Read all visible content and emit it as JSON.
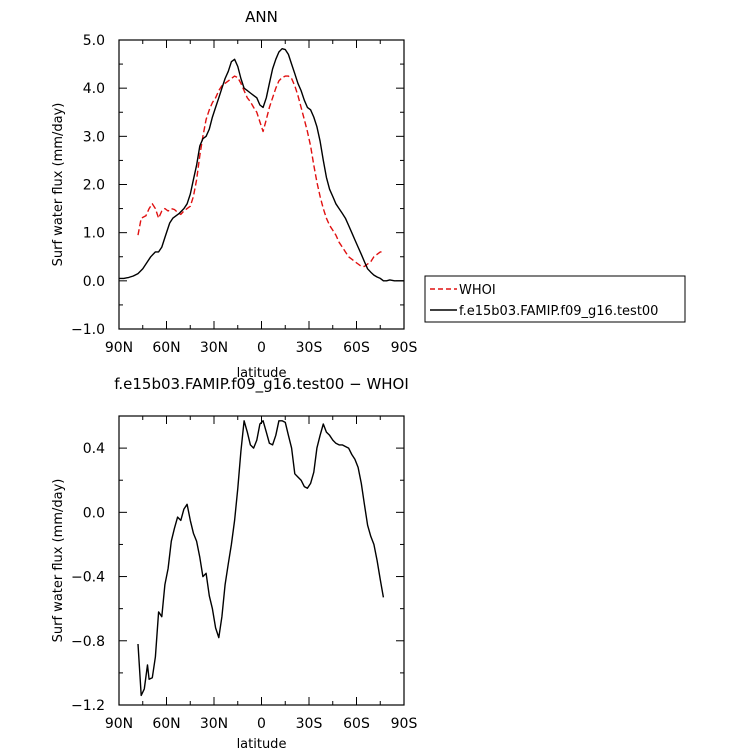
{
  "chart_data": [
    {
      "type": "line",
      "title": "ANN",
      "xlabel": "latitude",
      "ylabel": "Surf water flux (mm/day)",
      "xlim": [
        90,
        -90
      ],
      "ylim": [
        -1.0,
        5.0
      ],
      "x_ticks": [
        {
          "value": 90,
          "label": "90N"
        },
        {
          "value": 60,
          "label": "60N"
        },
        {
          "value": 30,
          "label": "30N"
        },
        {
          "value": 0,
          "label": "0"
        },
        {
          "value": -30,
          "label": "30S"
        },
        {
          "value": -60,
          "label": "60S"
        },
        {
          "value": -90,
          "label": "90S"
        }
      ],
      "y_ticks": [
        {
          "value": -1.0,
          "label": "−1.0"
        },
        {
          "value": 0.0,
          "label": "0.0"
        },
        {
          "value": 1.0,
          "label": "1.0"
        },
        {
          "value": 2.0,
          "label": "2.0"
        },
        {
          "value": 3.0,
          "label": "3.0"
        },
        {
          "value": 4.0,
          "label": "4.0"
        },
        {
          "value": 5.0,
          "label": "5.0"
        }
      ],
      "grid": false,
      "legend_placement": "right",
      "series": [
        {
          "name": "WHOI",
          "color": "#e01010",
          "dash": "dashed",
          "x": [
            78,
            76,
            73,
            71,
            69,
            67,
            65,
            63,
            61,
            59,
            57,
            55,
            53,
            51,
            49,
            47,
            45,
            43,
            41,
            39,
            37,
            35,
            33,
            31,
            29,
            27,
            25,
            23,
            21,
            19,
            17,
            15,
            13,
            11,
            9,
            7,
            5,
            3,
            1,
            -1,
            -3,
            -5,
            -7,
            -9,
            -11,
            -13,
            -15,
            -17,
            -19,
            -21,
            -23,
            -25,
            -27,
            -29,
            -31,
            -33,
            -35,
            -37,
            -39,
            -41,
            -43,
            -45,
            -47,
            -49,
            -51,
            -53,
            -55,
            -57,
            -59,
            -61,
            -63,
            -65,
            -67,
            -69,
            -71,
            -73,
            -75,
            -77
          ],
          "y": [
            0.95,
            1.3,
            1.35,
            1.5,
            1.6,
            1.5,
            1.3,
            1.45,
            1.5,
            1.45,
            1.5,
            1.48,
            1.42,
            1.38,
            1.45,
            1.5,
            1.55,
            1.75,
            2.1,
            2.6,
            3.0,
            3.35,
            3.55,
            3.7,
            3.8,
            3.95,
            4.05,
            4.1,
            4.15,
            4.2,
            4.25,
            4.22,
            4.1,
            3.95,
            3.8,
            3.72,
            3.6,
            3.5,
            3.3,
            3.1,
            3.35,
            3.6,
            3.8,
            4.0,
            4.15,
            4.22,
            4.25,
            4.25,
            4.2,
            4.05,
            3.85,
            3.6,
            3.35,
            3.1,
            2.8,
            2.4,
            2.05,
            1.75,
            1.5,
            1.3,
            1.15,
            1.05,
            0.95,
            0.8,
            0.7,
            0.6,
            0.5,
            0.45,
            0.4,
            0.35,
            0.3,
            0.3,
            0.35,
            0.4,
            0.5,
            0.55,
            0.6,
            0.6
          ]
        },
        {
          "name": "f.e15b03.FAMIP.f09_g16.test00",
          "color": "#000000",
          "dash": "solid",
          "x": [
            90,
            87,
            84,
            81,
            78,
            75,
            72,
            70,
            67,
            65,
            63,
            61,
            58,
            56,
            54,
            52,
            49,
            47,
            45,
            43,
            41,
            39,
            37,
            35,
            33,
            31,
            29,
            27,
            25,
            23,
            21,
            19,
            17,
            15,
            13,
            11,
            9,
            7,
            5,
            3,
            1,
            -1,
            -3,
            -5,
            -7,
            -9,
            -11,
            -13,
            -15,
            -17,
            -19,
            -21,
            -23,
            -25,
            -27,
            -29,
            -31,
            -33,
            -35,
            -37,
            -39,
            -41,
            -43,
            -45,
            -47,
            -49,
            -51,
            -53,
            -55,
            -57,
            -59,
            -61,
            -63,
            -65,
            -67,
            -69,
            -71,
            -73,
            -75,
            -77,
            -79,
            -81,
            -84,
            -87,
            -90
          ],
          "y": [
            0.05,
            0.05,
            0.07,
            0.1,
            0.15,
            0.25,
            0.4,
            0.5,
            0.6,
            0.6,
            0.7,
            0.9,
            1.2,
            1.3,
            1.35,
            1.4,
            1.5,
            1.6,
            1.8,
            2.1,
            2.4,
            2.8,
            2.95,
            3.0,
            3.15,
            3.4,
            3.6,
            3.8,
            4.0,
            4.2,
            4.35,
            4.55,
            4.6,
            4.45,
            4.2,
            4.0,
            3.95,
            3.9,
            3.85,
            3.8,
            3.65,
            3.6,
            3.8,
            4.1,
            4.4,
            4.6,
            4.75,
            4.82,
            4.8,
            4.7,
            4.5,
            4.3,
            4.1,
            3.95,
            3.75,
            3.6,
            3.55,
            3.4,
            3.2,
            2.9,
            2.5,
            2.15,
            1.9,
            1.75,
            1.6,
            1.5,
            1.4,
            1.3,
            1.15,
            1.0,
            0.85,
            0.7,
            0.55,
            0.4,
            0.25,
            0.18,
            0.12,
            0.08,
            0.05,
            0.0,
            0.0,
            0.02,
            0.0,
            0.0,
            0.0
          ]
        }
      ]
    },
    {
      "type": "line",
      "title": "f.e15b03.FAMIP.f09_g16.test00 − WHOI",
      "xlabel": "latitude",
      "ylabel": "Surf water flux (mm/day)",
      "xlim": [
        90,
        -90
      ],
      "ylim": [
        -1.2,
        0.6
      ],
      "x_ticks": [
        {
          "value": 90,
          "label": "90N"
        },
        {
          "value": 60,
          "label": "60N"
        },
        {
          "value": 30,
          "label": "30N"
        },
        {
          "value": 0,
          "label": "0"
        },
        {
          "value": -30,
          "label": "30S"
        },
        {
          "value": -60,
          "label": "60S"
        },
        {
          "value": -90,
          "label": "90S"
        }
      ],
      "y_ticks": [
        {
          "value": -1.2,
          "label": "−1.2"
        },
        {
          "value": -0.8,
          "label": "−0.8"
        },
        {
          "value": -0.4,
          "label": "−0.4"
        },
        {
          "value": 0.0,
          "label": "0.0"
        },
        {
          "value": 0.4,
          "label": "0.4"
        }
      ],
      "grid": false,
      "series": [
        {
          "name": "",
          "color": "#000000",
          "dash": "solid",
          "x": [
            78,
            76,
            74,
            72,
            71,
            69,
            67,
            65,
            63,
            61,
            59,
            57,
            55,
            53,
            51,
            49,
            47,
            45,
            43,
            41,
            39,
            37,
            35,
            33,
            31,
            29,
            27,
            25,
            23,
            21,
            19,
            17,
            15,
            13,
            11,
            9,
            7,
            5,
            3,
            1,
            -1,
            -3,
            -5,
            -7,
            -9,
            -11,
            -13,
            -15,
            -17,
            -19,
            -21,
            -23,
            -25,
            -27,
            -29,
            -31,
            -33,
            -35,
            -37,
            -39,
            -41,
            -43,
            -45,
            -47,
            -49,
            -51,
            -53,
            -55,
            -57,
            -59,
            -61,
            -63,
            -65,
            -67,
            -69,
            -71,
            -73,
            -75,
            -77
          ],
          "y": [
            -0.82,
            -1.14,
            -1.1,
            -0.95,
            -1.04,
            -1.03,
            -0.9,
            -0.62,
            -0.65,
            -0.45,
            -0.35,
            -0.18,
            -0.1,
            -0.03,
            -0.05,
            0.02,
            0.05,
            -0.05,
            -0.13,
            -0.18,
            -0.28,
            -0.4,
            -0.38,
            -0.52,
            -0.6,
            -0.72,
            -0.78,
            -0.65,
            -0.45,
            -0.32,
            -0.2,
            -0.05,
            0.15,
            0.38,
            0.57,
            0.5,
            0.42,
            0.4,
            0.45,
            0.55,
            0.57,
            0.5,
            0.43,
            0.42,
            0.48,
            0.57,
            0.57,
            0.56,
            0.48,
            0.4,
            0.24,
            0.22,
            0.2,
            0.16,
            0.15,
            0.18,
            0.25,
            0.4,
            0.48,
            0.55,
            0.5,
            0.48,
            0.45,
            0.43,
            0.42,
            0.42,
            0.41,
            0.4,
            0.36,
            0.33,
            0.28,
            0.18,
            0.05,
            -0.08,
            -0.15,
            -0.2,
            -0.3,
            -0.42,
            -0.53
          ]
        }
      ]
    }
  ]
}
